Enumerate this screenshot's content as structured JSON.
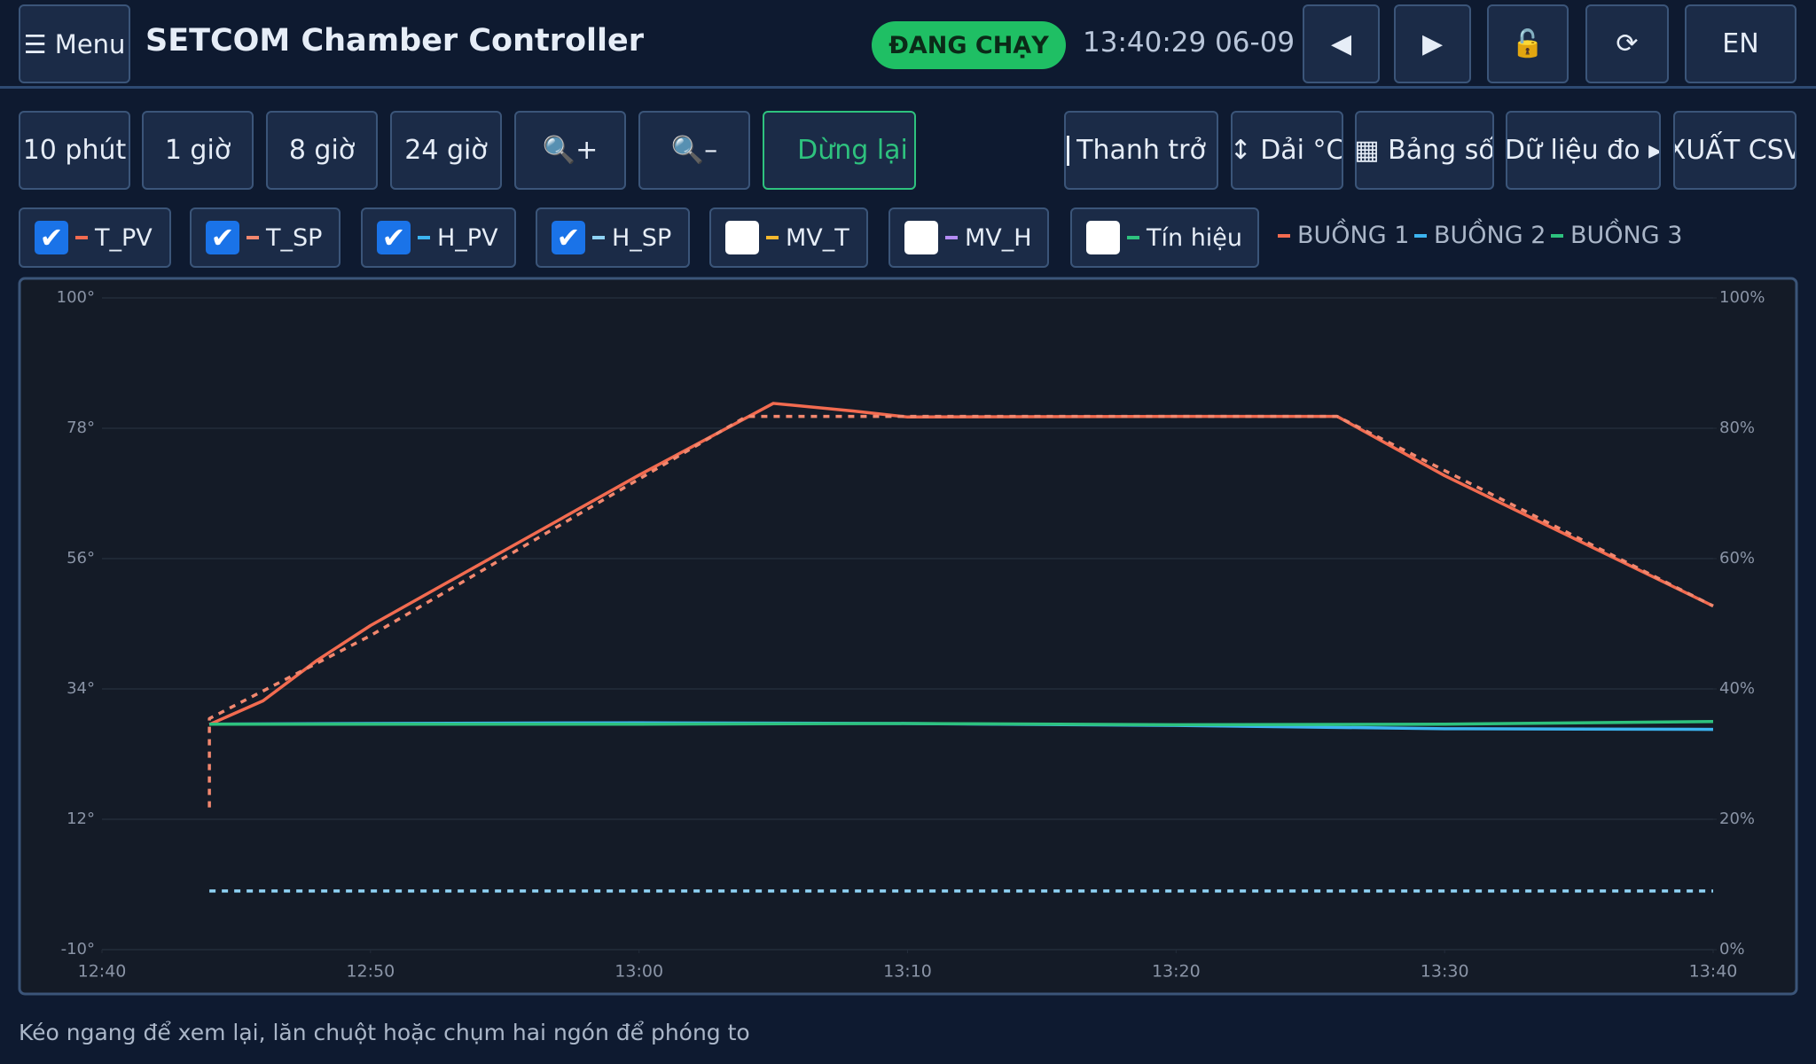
{
  "header": {
    "menu": "☰ Menu",
    "title": "SETCOM Chamber Controller",
    "status": "ĐANG CHẠY",
    "clock": "13:40:29 06-09",
    "buttons": [
      "◀",
      "▶",
      "🔓",
      "⟳",
      "EN"
    ]
  },
  "toolbar": {
    "ranges": [
      "10 phút",
      "1 giờ",
      "8 giờ",
      "24 giờ",
      "🔍+",
      "🔍–"
    ],
    "pause": "Dừng lại",
    "tools": [
      "Thanh trở",
      "↕ Dải °C",
      "▦ Bảng số",
      "Dữ liệu đo ▸",
      "XUẤT CSV"
    ]
  },
  "toggles": [
    {
      "label": "T_PV",
      "color": "#f26b50",
      "checked": true
    },
    {
      "label": "T_SP",
      "color": "#f2876e",
      "checked": true
    },
    {
      "label": "H_PV",
      "color": "#3cb4f0",
      "checked": true
    },
    {
      "label": "H_SP",
      "color": "#8fd3f5",
      "checked": true
    },
    {
      "label": "MV_T",
      "color": "#f5b82e",
      "checked": false
    },
    {
      "label": "MV_H",
      "color": "#b48cf5",
      "checked": false
    },
    {
      "label": "Tín hiệu",
      "color": "#2ec27e",
      "checked": false
    }
  ],
  "chambers": [
    {
      "name": "BUỒNG 1",
      "color": "#f26b50"
    },
    {
      "name": "BUỒNG 2",
      "color": "#3cb4f0"
    },
    {
      "name": "BUỒNG 3",
      "color": "#2ec27e"
    }
  ],
  "hint": "Kéo ngang để xem lại, lăn chuột hoặc chụm hai ngón để phóng to",
  "chart_data": {
    "type": "line",
    "grid": true,
    "xlim": [
      "12:40",
      "13:40"
    ],
    "xticks": [
      "12:40",
      "12:50",
      "13:00",
      "13:10",
      "13:20",
      "13:30",
      "13:40"
    ],
    "ylim": [
      -10,
      100
    ],
    "yticks": [
      {
        "value": -10,
        "label": "-10°"
      },
      {
        "value": 12,
        "label": "12°"
      },
      {
        "value": 34,
        "label": "34°"
      },
      {
        "value": 56,
        "label": "56°"
      },
      {
        "value": 78,
        "label": "78°"
      },
      {
        "value": 100,
        "label": "100°"
      }
    ],
    "y2lim": [
      0,
      100
    ],
    "y2ticks": [
      {
        "value": 0,
        "label": "0%"
      },
      {
        "value": 20,
        "label": "20%"
      },
      {
        "value": 40,
        "label": "40%"
      },
      {
        "value": 60,
        "label": "60%"
      },
      {
        "value": 80,
        "label": "80%"
      },
      {
        "value": 100,
        "label": "100%"
      }
    ],
    "series": [
      {
        "name": "T_PV",
        "color": "#f26b50",
        "dashed": false,
        "x": [
          "12:44",
          "12:46",
          "12:48",
          "12:50",
          "12:55",
          "13:00",
          "13:05",
          "13:08",
          "13:10",
          "13:20",
          "13:26",
          "13:30",
          "13:35",
          "13:40"
        ],
        "values": [
          28,
          32,
          38.8,
          44.7,
          57.4,
          70.1,
          82.2,
          80.9,
          79.9,
          80,
          80,
          70,
          59,
          48
        ]
      },
      {
        "name": "T_SP",
        "color": "#f2876e",
        "dashed": true,
        "x": [
          "12:44",
          "12:44",
          "12:50",
          "13:04",
          "13:26",
          "13:40"
        ],
        "values": [
          14,
          29,
          43,
          80,
          80,
          48
        ]
      },
      {
        "name": "H_PV",
        "color": "#3cb4f0",
        "dashed": false,
        "axis": "y2",
        "x": [
          "12:44",
          "12:50",
          "13:00",
          "13:10",
          "13:20",
          "13:30",
          "13:40"
        ],
        "values": [
          34.6,
          34.7,
          34.8,
          34.7,
          34.4,
          33.9,
          33.8
        ]
      },
      {
        "name": "H_SP",
        "color": "#8fd3f5",
        "dashed": true,
        "axis": "y2",
        "x": [
          "12:44",
          "13:40"
        ],
        "values": [
          9,
          9
        ]
      },
      {
        "color": "#2ec27e",
        "dashed": false,
        "axis": "y2",
        "x": [
          "12:44",
          "12:50",
          "13:00",
          "13:10",
          "13:20",
          "13:30",
          "13:40"
        ],
        "values": [
          34.6,
          34.6,
          34.6,
          34.7,
          34.5,
          34.6,
          35
        ]
      }
    ]
  }
}
